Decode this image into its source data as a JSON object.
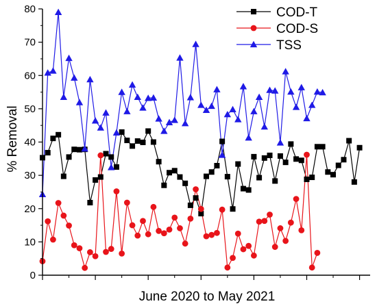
{
  "chart_data": {
    "type": "line",
    "title": "",
    "xlabel": "June 2020 to May 2021",
    "ylabel": "% Removal",
    "ylim": [
      0,
      80
    ],
    "yticks": [
      0,
      10,
      20,
      30,
      40,
      50,
      60,
      70,
      80
    ],
    "xlim": [
      0,
      62
    ],
    "xticks": [
      0,
      10,
      20,
      30,
      40,
      50,
      60
    ],
    "x_tick_labels_shown": false,
    "grid": false,
    "legend_position": "top-right",
    "series": [
      {
        "name": "COD-T",
        "color": "#000000",
        "marker": "square",
        "values": [
          35.3,
          36.8,
          41.1,
          42.2,
          29.7,
          35.5,
          37.8,
          37.7,
          37.8,
          21.8,
          28.6,
          29.5,
          36.5,
          35.5,
          32.5,
          43.0,
          40.5,
          38.8,
          40.3,
          39.9,
          43.3,
          40.0,
          34.1,
          27.0,
          30.8,
          31.4,
          29.5,
          27.6,
          21.0,
          23.2,
          18.5,
          29.7,
          31.0,
          32.9,
          40.2,
          29.6,
          19.9,
          33.4,
          26.0,
          25.6,
          35.6,
          29.3,
          35.2,
          36.0,
          28.3,
          35.8,
          33.9,
          39.4,
          34.9,
          34.5,
          28.8,
          29.4,
          38.6,
          38.6,
          31.0,
          30.2,
          33.0,
          34.7,
          40.4,
          28.0,
          38.3
        ]
      },
      {
        "name": "COD-S",
        "color": "#e8141a",
        "marker": "circle",
        "values": [
          4.2,
          16.2,
          10.7,
          21.7,
          17.9,
          14.9,
          9.0,
          8.1,
          2.2,
          6.9,
          5.7,
          36.0,
          7.0,
          7.9,
          25.2,
          6.5,
          21.8,
          15.0,
          11.9,
          16.3,
          12.3,
          20.5,
          13.3,
          12.6,
          13.7,
          17.3,
          14.1,
          9.5,
          17.0,
          25.8,
          19.9,
          11.7,
          12.1,
          12.7,
          19.7,
          2.3,
          5.2,
          12.5,
          7.8,
          8.8,
          5.9,
          16.1,
          16.3,
          18.2,
          8.5,
          14.1,
          10.3,
          15.8,
          22.9,
          13.5,
          36.2,
          2.3,
          6.7
        ]
      },
      {
        "name": "TSS",
        "color": "#1f1ae6",
        "marker": "triangle",
        "values": [
          24.3,
          60.8,
          61.4,
          79.0,
          53.5,
          65.2,
          59.3,
          51.9,
          38.0,
          58.8,
          46.4,
          44.3,
          48.8,
          32.4,
          42.8,
          55.0,
          49.2,
          57.2,
          53.5,
          50.3,
          53.2,
          53.3,
          47.0,
          43.3,
          45.9,
          46.6,
          65.3,
          45.6,
          53.4,
          69.4,
          51.1,
          49.6,
          50.8,
          55.8,
          36.1,
          48.3,
          49.8,
          46.8,
          56.7,
          41.3,
          49.2,
          53.5,
          44.6,
          55.6,
          55.4,
          39.8,
          61.2,
          55.1,
          50.5,
          56.4,
          47.1,
          51.1,
          55.1,
          54.9
        ]
      }
    ]
  }
}
